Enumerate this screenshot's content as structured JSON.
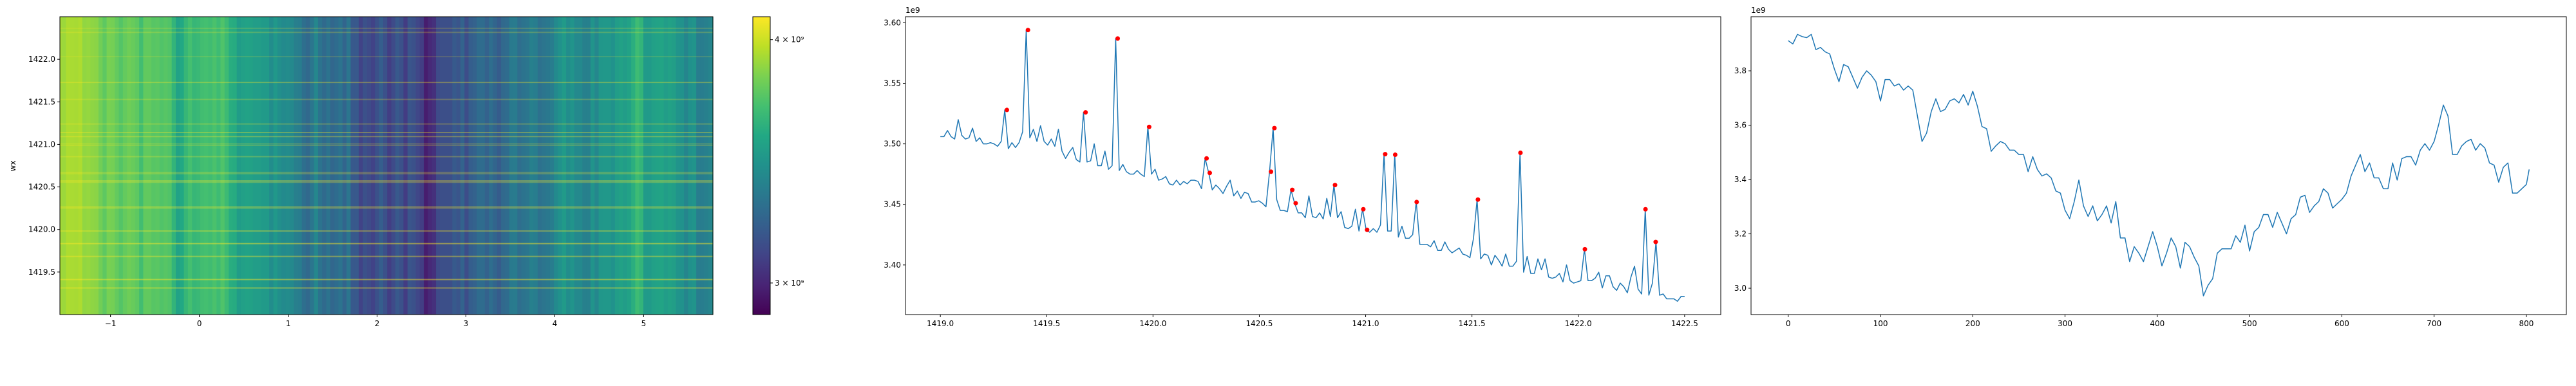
{
  "chart_data": [
    {
      "type": "heatmap",
      "ylabel": "wx",
      "xlabel": "",
      "xlim": [
        -1.57,
        5.78
      ],
      "ylim": [
        1419.0,
        1422.5
      ],
      "xticks": [
        -1,
        0,
        1,
        2,
        3,
        4,
        5
      ],
      "xtick_labels": [
        "−1",
        "0",
        "1",
        "2",
        "3",
        "4",
        "5"
      ],
      "yticks": [
        1419.5,
        1420.0,
        1420.5,
        1421.0,
        1421.5,
        1422.0
      ],
      "ytick_labels": [
        "1419.5",
        "1420.0",
        "1420.5",
        "1421.0",
        "1421.5",
        "1422.0"
      ],
      "colormap": "viridis",
      "colorbar": {
        "scale": "log",
        "range": [
          2890000000.0,
          4110000000.0
        ],
        "ticks": [
          4000000000.0,
          3000000000.0
        ],
        "tick_labels": [
          "4 × 10⁹",
          "3 × 10⁹"
        ]
      },
      "column_profile_source": "right-line-series",
      "bright_rows_at": "peak-markers"
    },
    {
      "type": "line",
      "offset_label": "1e9",
      "xlim": [
        1418.836,
        1422.67
      ],
      "ylim": [
        3.359,
        3.605
      ],
      "xticks": [
        1419.0,
        1419.5,
        1420.0,
        1420.5,
        1421.0,
        1421.5,
        1422.0,
        1422.5
      ],
      "xtick_labels": [
        "1419.0",
        "1419.5",
        "1420.0",
        "1420.5",
        "1421.0",
        "1421.5",
        "1422.0",
        "1422.5"
      ],
      "yticks": [
        3.4,
        3.45,
        3.5,
        3.55,
        3.6
      ],
      "ytick_labels": [
        "3.40",
        "3.45",
        "3.50",
        "3.55",
        "3.60"
      ],
      "line_color": "#1f77b4",
      "marker_color": "#ff0000",
      "x_range": [
        1419.0,
        1422.5
      ],
      "values": [
        3.506,
        3.506,
        3.511,
        3.506,
        3.504,
        3.52,
        3.507,
        3.504,
        3.505,
        3.513,
        3.502,
        3.505,
        3.5,
        3.5,
        3.501,
        3.5,
        3.498,
        3.502,
        3.528,
        3.496,
        3.501,
        3.497,
        3.501,
        3.51,
        3.594,
        3.505,
        3.512,
        3.502,
        3.515,
        3.502,
        3.499,
        3.504,
        3.498,
        3.512,
        3.494,
        3.488,
        3.493,
        3.497,
        3.487,
        3.485,
        3.526,
        3.485,
        3.486,
        3.5,
        3.482,
        3.482,
        3.494,
        3.479,
        3.482,
        3.587,
        3.478,
        3.483,
        3.477,
        3.475,
        3.475,
        3.478,
        3.475,
        3.473,
        3.514,
        3.475,
        3.479,
        3.47,
        3.471,
        3.473,
        3.467,
        3.466,
        3.47,
        3.466,
        3.469,
        3.467,
        3.47,
        3.47,
        3.469,
        3.463,
        3.488,
        3.476,
        3.462,
        3.466,
        3.463,
        3.459,
        3.465,
        3.47,
        3.457,
        3.461,
        3.455,
        3.46,
        3.459,
        3.452,
        3.452,
        3.453,
        3.451,
        3.448,
        3.477,
        3.513,
        3.454,
        3.445,
        3.445,
        3.444,
        3.462,
        3.451,
        3.443,
        3.443,
        3.439,
        3.457,
        3.44,
        3.439,
        3.443,
        3.438,
        3.455,
        3.44,
        3.466,
        3.439,
        3.444,
        3.431,
        3.43,
        3.432,
        3.446,
        3.428,
        3.446,
        3.429,
        3.427,
        3.43,
        3.427,
        3.433,
        3.4915,
        3.428,
        3.428,
        3.491,
        3.423,
        3.432,
        3.422,
        3.422,
        3.425,
        3.452,
        3.417,
        3.417,
        3.417,
        3.415,
        3.42,
        3.412,
        3.412,
        3.419,
        3.413,
        3.41,
        3.412,
        3.414,
        3.409,
        3.408,
        3.406,
        3.422,
        3.454,
        3.405,
        3.409,
        3.408,
        3.4,
        3.408,
        3.404,
        3.399,
        3.409,
        3.399,
        3.399,
        3.403,
        3.4926,
        3.394,
        3.407,
        3.393,
        3.393,
        3.405,
        3.396,
        3.405,
        3.39,
        3.389,
        3.39,
        3.393,
        3.386,
        3.4,
        3.387,
        3.385,
        3.386,
        3.387,
        3.413,
        3.387,
        3.387,
        3.389,
        3.394,
        3.381,
        3.391,
        3.391,
        3.382,
        3.379,
        3.385,
        3.382,
        3.377,
        3.39,
        3.399,
        3.38,
        3.376,
        3.446,
        3.375,
        3.385,
        3.419,
        3.375,
        3.376,
        3.372,
        3.372,
        3.372,
        3.37,
        3.374,
        3.374
      ],
      "peaks": [
        [
          1419.313,
          3.528
        ],
        [
          1419.412,
          3.594
        ],
        [
          1419.683,
          3.526
        ],
        [
          1419.834,
          3.587
        ],
        [
          1419.982,
          3.514
        ],
        [
          1420.252,
          3.488
        ],
        [
          1420.267,
          3.476
        ],
        [
          1420.555,
          3.477
        ],
        [
          1420.571,
          3.513
        ],
        [
          1420.655,
          3.462
        ],
        [
          1420.671,
          3.451
        ],
        [
          1420.856,
          3.466
        ],
        [
          1420.989,
          3.446
        ],
        [
          1421.007,
          3.429
        ],
        [
          1421.092,
          3.4915
        ],
        [
          1421.139,
          3.491
        ],
        [
          1421.24,
          3.452
        ],
        [
          1421.528,
          3.454
        ],
        [
          1421.728,
          3.4926
        ],
        [
          1422.031,
          3.413
        ],
        [
          1422.316,
          3.446
        ],
        [
          1422.364,
          3.419
        ]
      ]
    },
    {
      "type": "line",
      "offset_label": "1e9",
      "xlim": [
        -40.3,
        843.3
      ],
      "ylim": [
        2.903,
        3.999
      ],
      "xticks": [
        0,
        100,
        200,
        300,
        400,
        500,
        600,
        700,
        800
      ],
      "xtick_labels": [
        "0",
        "100",
        "200",
        "300",
        "400",
        "500",
        "600",
        "700",
        "800"
      ],
      "yticks": [
        3.0,
        3.2,
        3.4,
        3.6,
        3.8
      ],
      "ytick_labels": [
        "3.0",
        "3.2",
        "3.4",
        "3.6",
        "3.8"
      ],
      "line_color": "#1f77b4",
      "points": [
        [
          0,
          3.911
        ],
        [
          5,
          3.899
        ],
        [
          10,
          3.934
        ],
        [
          15,
          3.926
        ],
        [
          20,
          3.922
        ],
        [
          25,
          3.934
        ],
        [
          30,
          3.878
        ],
        [
          35,
          3.886
        ],
        [
          40,
          3.87
        ],
        [
          45,
          3.862
        ],
        [
          50,
          3.807
        ],
        [
          55,
          3.76
        ],
        [
          60,
          3.823
        ],
        [
          65,
          3.815
        ],
        [
          70,
          3.776
        ],
        [
          75,
          3.736
        ],
        [
          80,
          3.776
        ],
        [
          85,
          3.8
        ],
        [
          90,
          3.784
        ],
        [
          95,
          3.76
        ],
        [
          100,
          3.689
        ],
        [
          105,
          3.768
        ],
        [
          110,
          3.768
        ],
        [
          115,
          3.744
        ],
        [
          120,
          3.752
        ],
        [
          125,
          3.729
        ],
        [
          130,
          3.744
        ],
        [
          135,
          3.729
        ],
        [
          140,
          3.634
        ],
        [
          145,
          3.54
        ],
        [
          150,
          3.571
        ],
        [
          155,
          3.65
        ],
        [
          160,
          3.697
        ],
        [
          165,
          3.65
        ],
        [
          170,
          3.658
        ],
        [
          175,
          3.689
        ],
        [
          180,
          3.697
        ],
        [
          185,
          3.682
        ],
        [
          190,
          3.713
        ],
        [
          195,
          3.674
        ],
        [
          200,
          3.725
        ],
        [
          205,
          3.67
        ],
        [
          210,
          3.595
        ],
        [
          215,
          3.587
        ],
        [
          220,
          3.504
        ],
        [
          225,
          3.524
        ],
        [
          230,
          3.54
        ],
        [
          235,
          3.532
        ],
        [
          240,
          3.508
        ],
        [
          245,
          3.508
        ],
        [
          250,
          3.492
        ],
        [
          255,
          3.492
        ],
        [
          260,
          3.429
        ],
        [
          265,
          3.484
        ],
        [
          270,
          3.437
        ],
        [
          275,
          3.413
        ],
        [
          280,
          3.421
        ],
        [
          285,
          3.406
        ],
        [
          290,
          3.358
        ],
        [
          295,
          3.35
        ],
        [
          300,
          3.287
        ],
        [
          305,
          3.256
        ],
        [
          310,
          3.319
        ],
        [
          315,
          3.398
        ],
        [
          320,
          3.303
        ],
        [
          325,
          3.264
        ],
        [
          330,
          3.303
        ],
        [
          335,
          3.248
        ],
        [
          340,
          3.271
        ],
        [
          345,
          3.303
        ],
        [
          350,
          3.24
        ],
        [
          355,
          3.319
        ],
        [
          360,
          3.185
        ],
        [
          365,
          3.185
        ],
        [
          370,
          3.098
        ],
        [
          375,
          3.153
        ],
        [
          380,
          3.129
        ],
        [
          385,
          3.098
        ],
        [
          390,
          3.153
        ],
        [
          395,
          3.208
        ],
        [
          400,
          3.153
        ],
        [
          405,
          3.082
        ],
        [
          410,
          3.129
        ],
        [
          415,
          3.185
        ],
        [
          420,
          3.153
        ],
        [
          425,
          3.074
        ],
        [
          430,
          3.169
        ],
        [
          435,
          3.153
        ],
        [
          440,
          3.114
        ],
        [
          445,
          3.082
        ],
        [
          450,
          2.972
        ],
        [
          455,
          3.011
        ],
        [
          460,
          3.035
        ],
        [
          465,
          3.129
        ],
        [
          470,
          3.145
        ],
        [
          475,
          3.145
        ],
        [
          480,
          3.145
        ],
        [
          485,
          3.193
        ],
        [
          490,
          3.169
        ],
        [
          495,
          3.232
        ],
        [
          500,
          3.137
        ],
        [
          505,
          3.208
        ],
        [
          510,
          3.224
        ],
        [
          515,
          3.271
        ],
        [
          520,
          3.271
        ],
        [
          525,
          3.224
        ],
        [
          530,
          3.279
        ],
        [
          535,
          3.24
        ],
        [
          540,
          3.2
        ],
        [
          545,
          3.256
        ],
        [
          550,
          3.271
        ],
        [
          555,
          3.335
        ],
        [
          560,
          3.342
        ],
        [
          565,
          3.279
        ],
        [
          570,
          3.303
        ],
        [
          575,
          3.319
        ],
        [
          580,
          3.366
        ],
        [
          585,
          3.35
        ],
        [
          590,
          3.295
        ],
        [
          595,
          3.311
        ],
        [
          600,
          3.327
        ],
        [
          605,
          3.35
        ],
        [
          610,
          3.413
        ],
        [
          615,
          3.453
        ],
        [
          620,
          3.492
        ],
        [
          625,
          3.429
        ],
        [
          630,
          3.461
        ],
        [
          635,
          3.406
        ],
        [
          640,
          3.406
        ],
        [
          645,
          3.366
        ],
        [
          650,
          3.366
        ],
        [
          655,
          3.461
        ],
        [
          660,
          3.398
        ],
        [
          665,
          3.477
        ],
        [
          670,
          3.484
        ],
        [
          675,
          3.484
        ],
        [
          680,
          3.453
        ],
        [
          685,
          3.508
        ],
        [
          690,
          3.532
        ],
        [
          695,
          3.508
        ],
        [
          700,
          3.54
        ],
        [
          705,
          3.603
        ],
        [
          710,
          3.674
        ],
        [
          715,
          3.634
        ],
        [
          720,
          3.492
        ],
        [
          725,
          3.492
        ],
        [
          730,
          3.524
        ],
        [
          735,
          3.54
        ],
        [
          740,
          3.548
        ],
        [
          745,
          3.508
        ],
        [
          750,
          3.532
        ],
        [
          755,
          3.516
        ],
        [
          760,
          3.461
        ],
        [
          765,
          3.453
        ],
        [
          770,
          3.39
        ],
        [
          775,
          3.445
        ],
        [
          780,
          3.461
        ],
        [
          785,
          3.35
        ],
        [
          790,
          3.35
        ],
        [
          795,
          3.366
        ],
        [
          800,
          3.382
        ],
        [
          803,
          3.437
        ]
      ]
    }
  ]
}
